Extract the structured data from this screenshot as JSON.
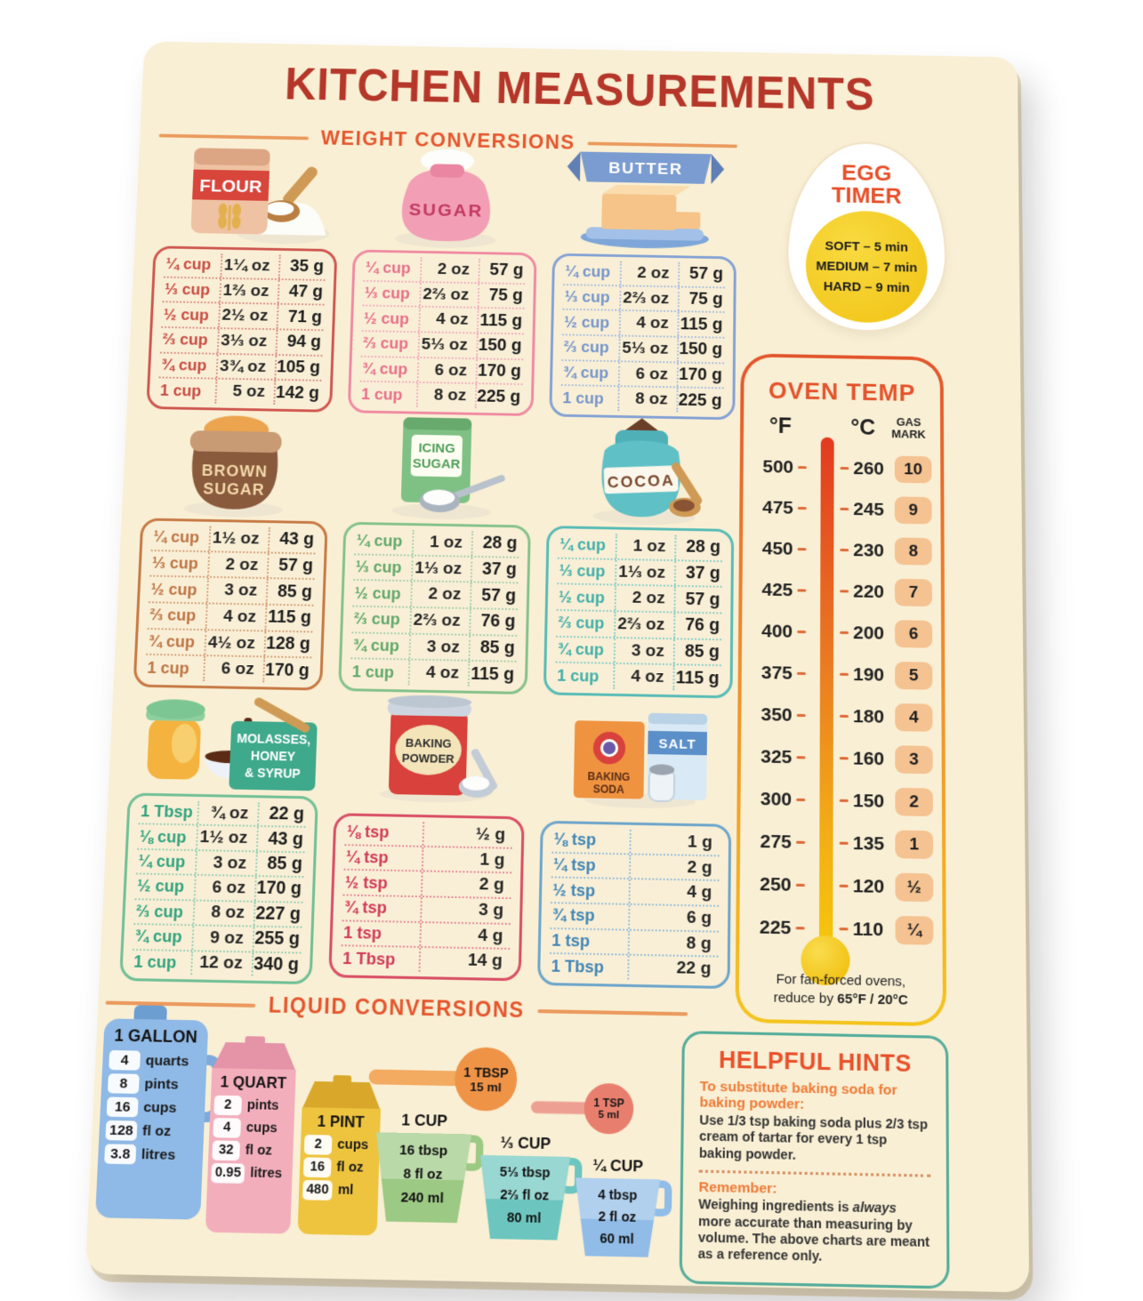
{
  "poster": {
    "title": "KITCHEN MEASUREMENTS",
    "weight_section_title": "WEIGHT CONVERSIONS",
    "liquid_section_title": "LIQUID CONVERSIONS"
  },
  "colors": {
    "board_background": "#f9efd4",
    "title_red": "#b5372a",
    "section_orange": "#e5562e",
    "oven_accent": "#e4532c",
    "hints_border": "#55ad9b",
    "gas_badge": "#f5c291"
  },
  "weight_tables": [
    {
      "id": "flour",
      "label_lines": [
        "FLOUR"
      ],
      "accent": "#cf5750",
      "rows": [
        [
          "¼ cup",
          "1¼ oz",
          "35 g"
        ],
        [
          "⅓ cup",
          "1⅔ oz",
          "47 g"
        ],
        [
          "½ cup",
          "2½ oz",
          "71 g"
        ],
        [
          "⅔ cup",
          "3⅓ oz",
          "94 g"
        ],
        [
          "¾ cup",
          "3¾ oz",
          "105 g"
        ],
        [
          "1 cup",
          "5 oz",
          "142 g"
        ]
      ]
    },
    {
      "id": "sugar",
      "label_lines": [
        "SUGAR"
      ],
      "accent": "#f08aa2",
      "rows": [
        [
          "¼ cup",
          "2 oz",
          "57 g"
        ],
        [
          "⅓ cup",
          "2⅔ oz",
          "75 g"
        ],
        [
          "½ cup",
          "4 oz",
          "115 g"
        ],
        [
          "⅔ cup",
          "5⅓ oz",
          "150 g"
        ],
        [
          "¾ cup",
          "6 oz",
          "170 g"
        ],
        [
          "1 cup",
          "8 oz",
          "225 g"
        ]
      ]
    },
    {
      "id": "butter",
      "label_lines": [
        "BUTTER"
      ],
      "accent": "#84a2d4",
      "rows": [
        [
          "¼ cup",
          "2 oz",
          "57 g"
        ],
        [
          "⅓ cup",
          "2⅔ oz",
          "75 g"
        ],
        [
          "½ cup",
          "4 oz",
          "115 g"
        ],
        [
          "⅔ cup",
          "5⅓ oz",
          "150 g"
        ],
        [
          "¾ cup",
          "6 oz",
          "170 g"
        ],
        [
          "1 cup",
          "8 oz",
          "225 g"
        ]
      ]
    },
    {
      "id": "brown-sugar",
      "label_lines": [
        "BROWN",
        "SUGAR"
      ],
      "accent": "#c77a45",
      "rows": [
        [
          "¼ cup",
          "1½ oz",
          "43 g"
        ],
        [
          "⅓ cup",
          "2 oz",
          "57 g"
        ],
        [
          "½ cup",
          "3 oz",
          "85 g"
        ],
        [
          "⅔ cup",
          "4 oz",
          "115 g"
        ],
        [
          "¾ cup",
          "4½ oz",
          "128 g"
        ],
        [
          "1 cup",
          "6 oz",
          "170 g"
        ]
      ]
    },
    {
      "id": "icing-sugar",
      "label_lines": [
        "ICING",
        "SUGAR"
      ],
      "accent": "#85c28b",
      "rows": [
        [
          "¼ cup",
          "1 oz",
          "28 g"
        ],
        [
          "⅓ cup",
          "1⅓ oz",
          "37 g"
        ],
        [
          "½ cup",
          "2 oz",
          "57 g"
        ],
        [
          "⅔ cup",
          "2⅔ oz",
          "76 g"
        ],
        [
          "¾ cup",
          "3 oz",
          "85 g"
        ],
        [
          "1 cup",
          "4 oz",
          "115 g"
        ]
      ]
    },
    {
      "id": "cocoa",
      "label_lines": [
        "COCOA"
      ],
      "accent": "#58bcb6",
      "rows": [
        [
          "¼ cup",
          "1 oz",
          "28 g"
        ],
        [
          "⅓ cup",
          "1⅓ oz",
          "37 g"
        ],
        [
          "½ cup",
          "2 oz",
          "57 g"
        ],
        [
          "⅔ cup",
          "2⅔ oz",
          "76 g"
        ],
        [
          "¾ cup",
          "3 oz",
          "85 g"
        ],
        [
          "1 cup",
          "4 oz",
          "115 g"
        ]
      ]
    },
    {
      "id": "molasses-honey-syrup",
      "label_lines": [
        "MOLASSES,",
        "HONEY",
        "& SYRUP"
      ],
      "accent": "#72c096",
      "rows": [
        [
          "1 Tbsp",
          "¾ oz",
          "22 g"
        ],
        [
          "⅛ cup",
          "1½ oz",
          "43 g"
        ],
        [
          "¼ cup",
          "3 oz",
          "85 g"
        ],
        [
          "½ cup",
          "6 oz",
          "170 g"
        ],
        [
          "⅔ cup",
          "8 oz",
          "227 g"
        ],
        [
          "¾ cup",
          "9 oz",
          "255 g"
        ],
        [
          "1 cup",
          "12 oz",
          "340 g"
        ]
      ]
    },
    {
      "id": "baking-powder",
      "label_lines": [
        "BAKING",
        "POWDER"
      ],
      "accent": "#d95066",
      "rows": [
        [
          "⅛ tsp",
          "½ g"
        ],
        [
          "¼ tsp",
          "1 g"
        ],
        [
          "½ tsp",
          "2 g"
        ],
        [
          "¾ tsp",
          "3 g"
        ],
        [
          "1 tsp",
          "4 g"
        ],
        [
          "1 Tbsp",
          "14 g"
        ]
      ]
    },
    {
      "id": "baking-soda",
      "label_lines": [
        "BAKING",
        "SODA"
      ],
      "salt_label": "SALT",
      "accent": "#6fa6cb",
      "rows": [
        [
          "⅛ tsp",
          "1 g"
        ],
        [
          "¼ tsp",
          "2 g"
        ],
        [
          "½ tsp",
          "4 g"
        ],
        [
          "¾ tsp",
          "6 g"
        ],
        [
          "1 tsp",
          "8 g"
        ],
        [
          "1 Tbsp",
          "22 g"
        ]
      ]
    }
  ],
  "egg_timer": {
    "title_lines": [
      "EGG",
      "TIMER"
    ],
    "times": [
      "SOFT – 5 min",
      "MEDIUM – 7 min",
      "HARD – 9 min"
    ]
  },
  "oven_temp": {
    "title": "OVEN TEMP",
    "col_f": "°F",
    "col_c": "°C",
    "col_gas_lines": [
      "GAS",
      "MARK"
    ],
    "rows": [
      [
        "500",
        "260",
        "10"
      ],
      [
        "475",
        "245",
        "9"
      ],
      [
        "450",
        "230",
        "8"
      ],
      [
        "425",
        "220",
        "7"
      ],
      [
        "400",
        "200",
        "6"
      ],
      [
        "375",
        "190",
        "5"
      ],
      [
        "350",
        "180",
        "4"
      ],
      [
        "325",
        "160",
        "3"
      ],
      [
        "300",
        "150",
        "2"
      ],
      [
        "275",
        "135",
        "1"
      ],
      [
        "250",
        "120",
        "½"
      ],
      [
        "225",
        "110",
        "¼"
      ]
    ],
    "note_line1": "For fan-forced ovens,",
    "note_line2_prefix": "reduce by ",
    "note_line2_bold": "65°F / 20°C"
  },
  "liquid": {
    "gallon": {
      "title": "1 GALLON",
      "rows": [
        [
          "4",
          "quarts"
        ],
        [
          "8",
          "pints"
        ],
        [
          "16",
          "cups"
        ],
        [
          "128",
          "fl oz"
        ],
        [
          "3.8",
          "litres"
        ]
      ]
    },
    "quart": {
      "title": "1 QUART",
      "rows": [
        [
          "2",
          "pints"
        ],
        [
          "4",
          "cups"
        ],
        [
          "32",
          "fl oz"
        ],
        [
          "0.95",
          "litres"
        ]
      ]
    },
    "pint": {
      "title": "1 PINT",
      "rows": [
        [
          "2",
          "cups"
        ],
        [
          "16",
          "fl oz"
        ],
        [
          "480",
          "ml"
        ]
      ]
    },
    "tbsp": {
      "title": "1 TBSP",
      "value": "15 ml"
    },
    "tsp": {
      "title": "1 TSP",
      "value": "5 ml"
    },
    "cup_full": {
      "title": "1 CUP",
      "lines": [
        "16 tbsp",
        "8 fl oz",
        "240 ml"
      ]
    },
    "cup_third": {
      "title": "⅓ CUP",
      "lines": [
        "5⅓ tbsp",
        "2⅔ fl oz",
        "80 ml"
      ]
    },
    "cup_quarter": {
      "title": "¼ CUP",
      "lines": [
        "4 tbsp",
        "2 fl oz",
        "60 ml"
      ]
    }
  },
  "hints": {
    "title": "HELPFUL HINTS",
    "hint1_heading": "To substitute baking soda for baking powder:",
    "hint1_body": "Use 1/3 tsp baking soda plus 2/3 tsp cream of tartar for every 1 tsp baking powder.",
    "hint2_heading": "Remember:",
    "hint2_body_pre": "Weighing ingredients is ",
    "hint2_body_italic": "always",
    "hint2_body_post": " more accurate than measuring by volume. The above charts are meant as a reference only."
  }
}
